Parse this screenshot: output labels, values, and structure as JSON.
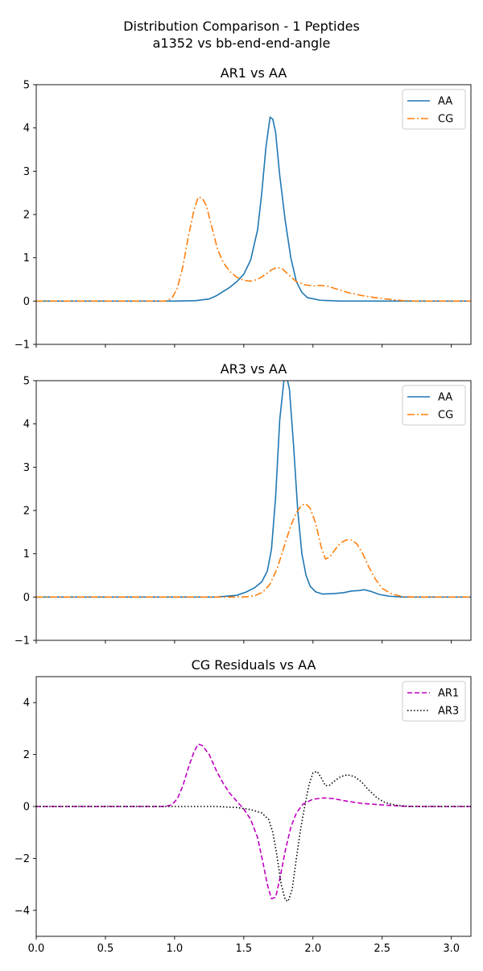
{
  "figure": {
    "title_line1": "Distribution Comparison - 1 Peptides",
    "title_line2": "a1352 vs bb-end-end-angle"
  },
  "colors": {
    "AA": "#1f77b4",
    "CG": "#ff7f0e",
    "AR1": "#bf00bf",
    "AR3": "#000000"
  },
  "chart_data": [
    {
      "type": "line",
      "title": "AR1 vs AA",
      "xlim": [
        0,
        3.1416
      ],
      "ylim": [
        -1,
        5
      ],
      "yticks": [
        -1,
        0,
        1,
        2,
        3,
        4,
        5
      ],
      "xticks": [
        0,
        0.5,
        1,
        1.5,
        2,
        2.5,
        3
      ],
      "xticklabels_visible": false,
      "legend_position": "top-right",
      "series": [
        {
          "name": "AA",
          "style": "solid",
          "color_key": "AA",
          "points": [
            [
              0,
              0
            ],
            [
              1.0,
              0
            ],
            [
              1.15,
              0.01
            ],
            [
              1.25,
              0.05
            ],
            [
              1.3,
              0.12
            ],
            [
              1.35,
              0.22
            ],
            [
              1.4,
              0.32
            ],
            [
              1.45,
              0.45
            ],
            [
              1.5,
              0.62
            ],
            [
              1.55,
              0.95
            ],
            [
              1.6,
              1.65
            ],
            [
              1.63,
              2.5
            ],
            [
              1.66,
              3.55
            ],
            [
              1.69,
              4.25
            ],
            [
              1.71,
              4.2
            ],
            [
              1.73,
              3.9
            ],
            [
              1.76,
              2.9
            ],
            [
              1.8,
              1.85
            ],
            [
              1.84,
              1.0
            ],
            [
              1.88,
              0.45
            ],
            [
              1.92,
              0.2
            ],
            [
              1.96,
              0.08
            ],
            [
              2.05,
              0.02
            ],
            [
              2.2,
              0
            ],
            [
              3.1416,
              0
            ]
          ]
        },
        {
          "name": "CG",
          "style": "dashdot",
          "color_key": "CG",
          "points": [
            [
              0,
              0
            ],
            [
              0.93,
              0
            ],
            [
              0.98,
              0.06
            ],
            [
              1.02,
              0.3
            ],
            [
              1.06,
              0.8
            ],
            [
              1.1,
              1.5
            ],
            [
              1.14,
              2.1
            ],
            [
              1.17,
              2.4
            ],
            [
              1.2,
              2.38
            ],
            [
              1.23,
              2.2
            ],
            [
              1.27,
              1.7
            ],
            [
              1.31,
              1.2
            ],
            [
              1.35,
              0.9
            ],
            [
              1.4,
              0.68
            ],
            [
              1.45,
              0.55
            ],
            [
              1.5,
              0.48
            ],
            [
              1.55,
              0.46
            ],
            [
              1.6,
              0.5
            ],
            [
              1.65,
              0.6
            ],
            [
              1.7,
              0.72
            ],
            [
              1.74,
              0.78
            ],
            [
              1.78,
              0.74
            ],
            [
              1.82,
              0.62
            ],
            [
              1.88,
              0.45
            ],
            [
              1.95,
              0.37
            ],
            [
              2.0,
              0.35
            ],
            [
              2.05,
              0.36
            ],
            [
              2.1,
              0.35
            ],
            [
              2.15,
              0.3
            ],
            [
              2.25,
              0.2
            ],
            [
              2.35,
              0.13
            ],
            [
              2.45,
              0.08
            ],
            [
              2.55,
              0.04
            ],
            [
              2.65,
              0.01
            ],
            [
              2.75,
              0
            ],
            [
              3.1416,
              0
            ]
          ]
        }
      ],
      "series_legend": [
        "AA",
        "CG"
      ]
    },
    {
      "type": "line",
      "title": "AR3 vs AA",
      "xlim": [
        0,
        3.1416
      ],
      "ylim": [
        -1,
        5
      ],
      "yticks": [
        -1,
        0,
        1,
        2,
        3,
        4,
        5
      ],
      "xticks": [
        0,
        0.5,
        1,
        1.5,
        2,
        2.5,
        3
      ],
      "xticklabels_visible": false,
      "legend_position": "top-right",
      "series": [
        {
          "name": "AA",
          "style": "solid",
          "color_key": "AA",
          "points": [
            [
              0,
              0
            ],
            [
              1.3,
              0
            ],
            [
              1.45,
              0.04
            ],
            [
              1.52,
              0.12
            ],
            [
              1.58,
              0.22
            ],
            [
              1.63,
              0.35
            ],
            [
              1.67,
              0.6
            ],
            [
              1.7,
              1.1
            ],
            [
              1.73,
              2.3
            ],
            [
              1.76,
              4.1
            ],
            [
              1.79,
              5.0
            ],
            [
              1.81,
              5.1
            ],
            [
              1.83,
              4.8
            ],
            [
              1.86,
              3.5
            ],
            [
              1.89,
              2.0
            ],
            [
              1.92,
              1.0
            ],
            [
              1.95,
              0.5
            ],
            [
              1.98,
              0.25
            ],
            [
              2.02,
              0.12
            ],
            [
              2.07,
              0.07
            ],
            [
              2.15,
              0.08
            ],
            [
              2.22,
              0.1
            ],
            [
              2.28,
              0.14
            ],
            [
              2.33,
              0.15
            ],
            [
              2.37,
              0.17
            ],
            [
              2.42,
              0.13
            ],
            [
              2.48,
              0.06
            ],
            [
              2.55,
              0.02
            ],
            [
              2.65,
              0
            ],
            [
              3.1416,
              0
            ]
          ]
        },
        {
          "name": "CG",
          "style": "dashdot",
          "color_key": "CG",
          "points": [
            [
              0,
              0
            ],
            [
              1.5,
              0
            ],
            [
              1.58,
              0.03
            ],
            [
              1.64,
              0.12
            ],
            [
              1.69,
              0.3
            ],
            [
              1.74,
              0.65
            ],
            [
              1.79,
              1.15
            ],
            [
              1.84,
              1.65
            ],
            [
              1.88,
              1.95
            ],
            [
              1.92,
              2.13
            ],
            [
              1.95,
              2.15
            ],
            [
              1.98,
              2.05
            ],
            [
              2.02,
              1.7
            ],
            [
              2.06,
              1.15
            ],
            [
              2.09,
              0.88
            ],
            [
              2.12,
              0.92
            ],
            [
              2.16,
              1.1
            ],
            [
              2.2,
              1.25
            ],
            [
              2.24,
              1.32
            ],
            [
              2.28,
              1.32
            ],
            [
              2.32,
              1.22
            ],
            [
              2.36,
              1.0
            ],
            [
              2.4,
              0.72
            ],
            [
              2.45,
              0.42
            ],
            [
              2.5,
              0.2
            ],
            [
              2.57,
              0.07
            ],
            [
              2.65,
              0.01
            ],
            [
              2.75,
              0
            ],
            [
              3.1416,
              0
            ]
          ]
        }
      ],
      "series_legend": [
        "AA",
        "CG"
      ]
    },
    {
      "type": "line",
      "title": "CG Residuals vs AA",
      "xlim": [
        0,
        3.1416
      ],
      "ylim": [
        -5,
        5
      ],
      "yticks": [
        -4,
        -2,
        0,
        2,
        4
      ],
      "xticks": [
        0,
        0.5,
        1,
        1.5,
        2,
        2.5,
        3
      ],
      "xticklabels": [
        "0.0",
        "0.5",
        "1.0",
        "1.5",
        "2.0",
        "2.5",
        "3.0"
      ],
      "xticklabels_visible": true,
      "legend_position": "top-right",
      "series": [
        {
          "name": "AR1",
          "style": "dashed",
          "color_key": "AR1",
          "points": [
            [
              0,
              0
            ],
            [
              0.93,
              0
            ],
            [
              0.98,
              0.06
            ],
            [
              1.02,
              0.3
            ],
            [
              1.06,
              0.8
            ],
            [
              1.1,
              1.5
            ],
            [
              1.14,
              2.1
            ],
            [
              1.17,
              2.4
            ],
            [
              1.2,
              2.35
            ],
            [
              1.25,
              2.0
            ],
            [
              1.3,
              1.4
            ],
            [
              1.35,
              0.9
            ],
            [
              1.4,
              0.5
            ],
            [
              1.45,
              0.2
            ],
            [
              1.5,
              -0.1
            ],
            [
              1.55,
              -0.5
            ],
            [
              1.6,
              -1.2
            ],
            [
              1.64,
              -2.2
            ],
            [
              1.67,
              -3.0
            ],
            [
              1.7,
              -3.55
            ],
            [
              1.73,
              -3.5
            ],
            [
              1.76,
              -2.8
            ],
            [
              1.8,
              -1.7
            ],
            [
              1.84,
              -0.8
            ],
            [
              1.88,
              -0.25
            ],
            [
              1.93,
              0.1
            ],
            [
              2.0,
              0.28
            ],
            [
              2.08,
              0.33
            ],
            [
              2.15,
              0.3
            ],
            [
              2.25,
              0.2
            ],
            [
              2.35,
              0.12
            ],
            [
              2.5,
              0.06
            ],
            [
              2.65,
              0.01
            ],
            [
              2.8,
              0
            ],
            [
              3.1416,
              0
            ]
          ]
        },
        {
          "name": "AR3",
          "style": "dotted",
          "color_key": "AR3",
          "points": [
            [
              0,
              0
            ],
            [
              1.3,
              0
            ],
            [
              1.45,
              -0.04
            ],
            [
              1.55,
              -0.12
            ],
            [
              1.63,
              -0.25
            ],
            [
              1.68,
              -0.5
            ],
            [
              1.71,
              -1.0
            ],
            [
              1.74,
              -1.9
            ],
            [
              1.77,
              -3.0
            ],
            [
              1.8,
              -3.6
            ],
            [
              1.82,
              -3.65
            ],
            [
              1.85,
              -3.2
            ],
            [
              1.88,
              -2.0
            ],
            [
              1.91,
              -0.9
            ],
            [
              1.94,
              0.0
            ],
            [
              1.97,
              0.8
            ],
            [
              2.0,
              1.3
            ],
            [
              2.03,
              1.35
            ],
            [
              2.06,
              1.1
            ],
            [
              2.09,
              0.8
            ],
            [
              2.12,
              0.82
            ],
            [
              2.16,
              1.0
            ],
            [
              2.2,
              1.15
            ],
            [
              2.25,
              1.22
            ],
            [
              2.3,
              1.15
            ],
            [
              2.35,
              0.95
            ],
            [
              2.4,
              0.65
            ],
            [
              2.46,
              0.35
            ],
            [
              2.52,
              0.15
            ],
            [
              2.6,
              0.05
            ],
            [
              2.7,
              0
            ],
            [
              3.1416,
              0
            ]
          ]
        }
      ],
      "series_legend": [
        "AR1",
        "AR3"
      ]
    }
  ]
}
